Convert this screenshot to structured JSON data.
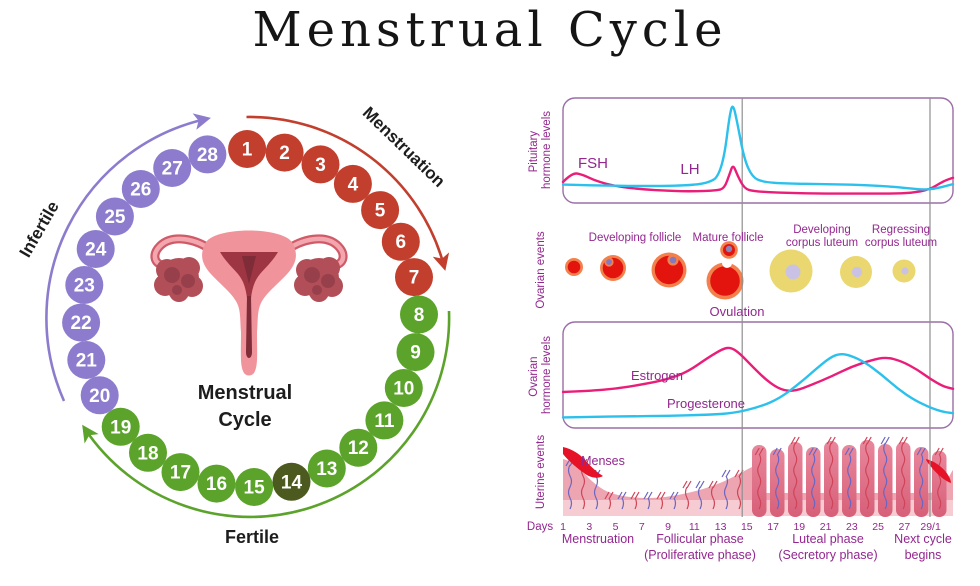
{
  "title": "Menstrual Cycle",
  "cycle": {
    "center_line1": "Menstrual",
    "center_line2": "Cycle",
    "arc_labels": {
      "menstruation": "Menstruation",
      "fertile": "Fertile",
      "infertile": "Infertile"
    },
    "day_count": 28,
    "day_labels": [
      "1",
      "2",
      "3",
      "4",
      "5",
      "6",
      "7",
      "8",
      "9",
      "10",
      "11",
      "12",
      "13",
      "14",
      "15",
      "16",
      "17",
      "18",
      "19",
      "20",
      "21",
      "22",
      "23",
      "24",
      "25",
      "26",
      "27",
      "28"
    ],
    "phases": [
      {
        "name": "menstruation",
        "days": [
          1,
          7
        ],
        "color": "#c23f2e"
      },
      {
        "name": "fertile",
        "days": [
          8,
          19
        ],
        "color": "#5ba32b"
      },
      {
        "name": "ovulation",
        "days": [
          14,
          14
        ],
        "color": "#4c5a1f"
      },
      {
        "name": "infertile",
        "days": [
          20,
          28
        ],
        "color": "#8d7ccd"
      }
    ]
  },
  "charts": {
    "pituitary": {
      "ylabel_line1": "Pituitary",
      "ylabel_line2": "hormone levels",
      "series_labels": {
        "fsh": "FSH",
        "lh": "LH"
      }
    },
    "ovarian_events": {
      "ylabel": "Ovarian events",
      "labels": {
        "developing_follicle": "Developing follicle",
        "mature_follicle": "Mature follicle",
        "developing_cl_line1": "Developing",
        "developing_cl_line2": "corpus luteum",
        "regressing_cl_line1": "Regressing",
        "regressing_cl_line2": "corpus luteum",
        "ovulation": "Ovulation"
      }
    },
    "ovarian_hormones": {
      "ylabel_line1": "Ovarian",
      "ylabel_line2": "hormone levels",
      "series_labels": {
        "estrogen": "Estrogen",
        "progesterone": "Progesterone"
      }
    },
    "uterine": {
      "ylabel": "Uterine events",
      "menses": "Menses",
      "days_label": "Days",
      "day_ticks": [
        "1",
        "3",
        "5",
        "7",
        "9",
        "11",
        "13",
        "15",
        "17",
        "19",
        "21",
        "23",
        "25",
        "27",
        "29/1"
      ],
      "phase_labels": [
        {
          "line1": "Menstruation",
          "line2": ""
        },
        {
          "line1": "Follicular phase",
          "line2": "(Proliferative phase)"
        },
        {
          "line1": "Luteal phase",
          "line2": "(Secretory phase)"
        },
        {
          "line1": "Next cycle",
          "line2": "begins"
        }
      ]
    }
  },
  "chart_data": [
    {
      "type": "line",
      "id": "pituitary",
      "title": "Pituitary hormone levels",
      "x_label": "day of cycle",
      "x_range": [
        1,
        30.7
      ],
      "vlines_day": [
        14.65,
        28.95
      ],
      "legend_position": "inline",
      "grid": false,
      "series": [
        {
          "name": "FSH",
          "color": "#ea1d78",
          "points": [
            [
              1,
              20
            ],
            [
              1.7,
              29
            ],
            [
              2.5,
              27
            ],
            [
              3.5,
              21
            ],
            [
              5,
              16
            ],
            [
              7,
              13
            ],
            [
              9,
              11.5
            ],
            [
              11,
              11
            ],
            [
              12.7,
              12
            ],
            [
              13.3,
              14
            ],
            [
              13.7,
              28
            ],
            [
              13.95,
              37
            ],
            [
              14.3,
              26
            ],
            [
              14.8,
              14
            ],
            [
              15.5,
              11
            ],
            [
              18,
              9.5
            ],
            [
              21,
              9
            ],
            [
              24,
              9
            ],
            [
              26,
              9
            ],
            [
              27.5,
              9.5
            ],
            [
              28.9,
              12.5
            ],
            [
              30,
              21
            ],
            [
              30.7,
              24
            ]
          ]
        },
        {
          "name": "LH",
          "color": "#2cc0ec",
          "points": [
            [
              1,
              17.5
            ],
            [
              4,
              16.5
            ],
            [
              8,
              16
            ],
            [
              11,
              17
            ],
            [
              12.2,
              20
            ],
            [
              12.8,
              25
            ],
            [
              13.3,
              45
            ],
            [
              13.7,
              85
            ],
            [
              13.95,
              95
            ],
            [
              14.3,
              75
            ],
            [
              14.8,
              42
            ],
            [
              15.4,
              25
            ],
            [
              16.2,
              20
            ],
            [
              18,
              18.5
            ],
            [
              21,
              18
            ],
            [
              23,
              17.5
            ],
            [
              25,
              16.5
            ],
            [
              27,
              14.5
            ],
            [
              28.5,
              12.5
            ],
            [
              29.5,
              14
            ],
            [
              30.7,
              18
            ]
          ]
        }
      ]
    },
    {
      "type": "line",
      "id": "ovarian_hormones",
      "title": "Ovarian hormone levels",
      "x_label": "day of cycle",
      "x_range": [
        1,
        30.7
      ],
      "grid": false,
      "series": [
        {
          "name": "Estrogen",
          "color": "#ea1d78",
          "points": [
            [
              1,
              34
            ],
            [
              3,
              35
            ],
            [
              5,
              37
            ],
            [
              7,
              41
            ],
            [
              9,
              46
            ],
            [
              10.5,
              53
            ],
            [
              12,
              66
            ],
            [
              13.2,
              75
            ],
            [
              13.8,
              76
            ],
            [
              14.5,
              70
            ],
            [
              15.5,
              57
            ],
            [
              16.6,
              44
            ],
            [
              17.6,
              36
            ],
            [
              18.6,
              34.5
            ],
            [
              20,
              41
            ],
            [
              21.5,
              49
            ],
            [
              23,
              58
            ],
            [
              24.5,
              64
            ],
            [
              25.6,
              67
            ],
            [
              26.8,
              63
            ],
            [
              28,
              55
            ],
            [
              29,
              46
            ],
            [
              30,
              39
            ],
            [
              30.7,
              37
            ]
          ]
        },
        {
          "name": "Progesterone",
          "color": "#2cc0ec",
          "points": [
            [
              1,
              10
            ],
            [
              3,
              10.5
            ],
            [
              6,
              11
            ],
            [
              9,
              11.5
            ],
            [
              12,
              12.5
            ],
            [
              14,
              14
            ],
            [
              16,
              20
            ],
            [
              17.5,
              28
            ],
            [
              19,
              42
            ],
            [
              20.3,
              56
            ],
            [
              21.3,
              66
            ],
            [
              22,
              70
            ],
            [
              22.8,
              69
            ],
            [
              24,
              62
            ],
            [
              25.3,
              50
            ],
            [
              26.5,
              37
            ],
            [
              27.8,
              26
            ],
            [
              29,
              19
            ],
            [
              30,
              15
            ],
            [
              30.7,
              14
            ]
          ]
        }
      ]
    }
  ],
  "colors": {
    "text_purple": "#93278f",
    "frame_border": "#9a6fa5",
    "gridline_gray": "#8f8f8f",
    "fsh_estrogen_pink": "#ea1d78",
    "lh_progesterone_cyan": "#2cc0ec",
    "menstruation_red": "#c23f2e",
    "fertile_green": "#5ba32b",
    "ovulation_darkgreen": "#4c5a1f",
    "infertile_purple": "#8d7ccd",
    "follicle_red": "#e3140e",
    "follicle_orange": "#f2814d",
    "corpus_luteum_yellow": "#ead76f",
    "menses_red": "#e51228"
  }
}
